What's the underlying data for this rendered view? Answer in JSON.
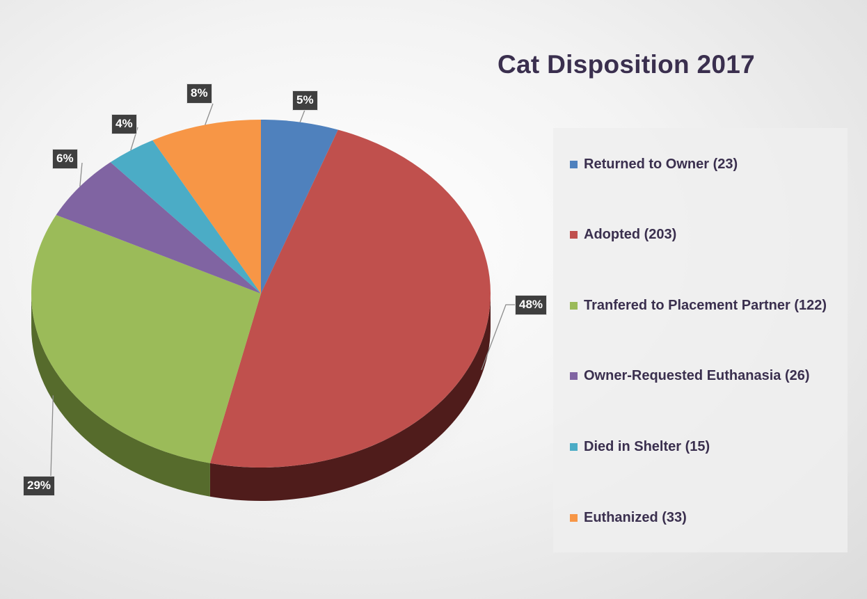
{
  "chart_data": {
    "type": "pie",
    "title": "Cat Disposition 2017",
    "legend_position": "right",
    "categories": [
      "Returned to Owner",
      "Adopted",
      "Tranfered to Placement Partner",
      "Owner-Requested Euthanasia",
      "Died in Shelter",
      "Euthanized"
    ],
    "values": [
      23,
      203,
      122,
      26,
      15,
      33
    ],
    "percent_labels": [
      "5%",
      "48%",
      "29%",
      "6%",
      "4%",
      "8%"
    ],
    "legend_labels": [
      "Returned to Owner (23)",
      "Adopted (203)",
      "Tranfered to Placement Partner (122)",
      "Owner-Requested Euthanasia (26)",
      "Died in Shelter (15)",
      "Euthanized (33)"
    ],
    "colors": [
      "#4f81bd",
      "#c0504d",
      "#9bbb59",
      "#8064a2",
      "#4bacc6",
      "#f79646"
    ],
    "side_colors": [
      "#2c4a70",
      "#4f1c1b",
      "#566b2c",
      "#4a3866",
      "#2a6a7c",
      "#9b5a23"
    ]
  }
}
